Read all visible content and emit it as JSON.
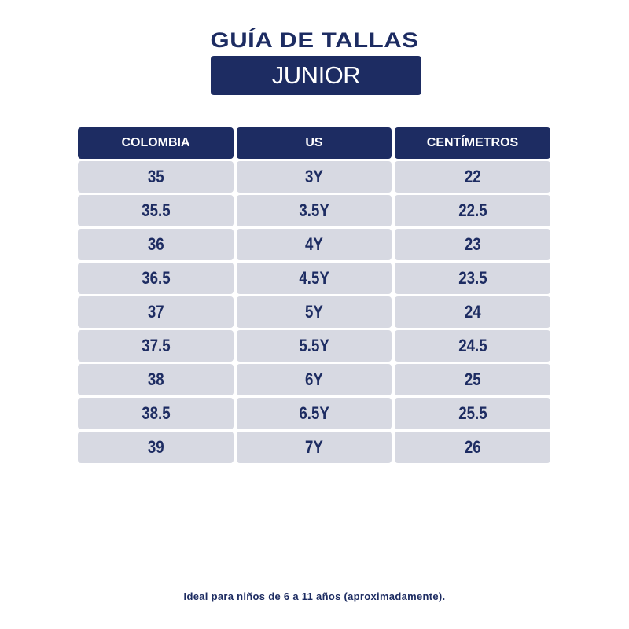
{
  "title": "GUÍA DE TALLAS",
  "subtitle": "JUNIOR",
  "table": {
    "headers": [
      "COLOMBIA",
      "US",
      "CENTÍMETROS"
    ],
    "rows": [
      [
        "35",
        "3Y",
        "22"
      ],
      [
        "35.5",
        "3.5Y",
        "22.5"
      ],
      [
        "36",
        "4Y",
        "23"
      ],
      [
        "36.5",
        "4.5Y",
        "23.5"
      ],
      [
        "37",
        "5Y",
        "24"
      ],
      [
        "37.5",
        "5.5Y",
        "24.5"
      ],
      [
        "38",
        "6Y",
        "25"
      ],
      [
        "38.5",
        "6.5Y",
        "25.5"
      ],
      [
        "39",
        "7Y",
        "26"
      ]
    ]
  },
  "footer": "Ideal para niños de 6 a 11 años (aproximadamente).",
  "colors": {
    "navy": "#1d2c62",
    "cell": "#d7d9e2"
  }
}
